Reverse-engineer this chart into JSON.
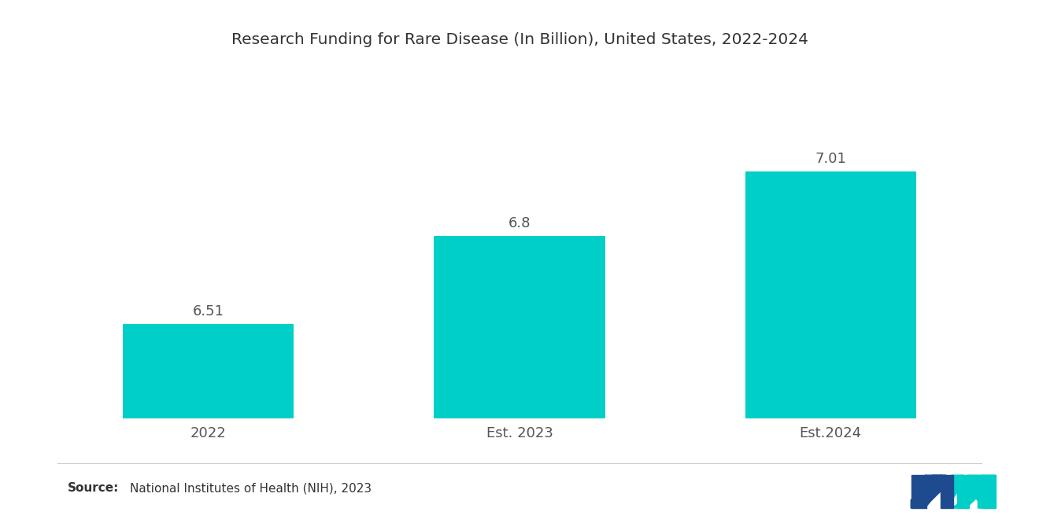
{
  "title": "Research Funding for Rare Disease (In Billion), United States, 2022-2024",
  "categories": [
    "2022",
    "Est. 2023",
    "Est.2024"
  ],
  "values": [
    6.51,
    6.8,
    7.01
  ],
  "bar_color": "#00CFC8",
  "background_color": "#ffffff",
  "title_fontsize": 14.5,
  "label_fontsize": 13,
  "tick_fontsize": 13,
  "source_text": "National Institutes of Health (NIH), 2023",
  "source_label": "Source:",
  "ylim_min": 6.2,
  "ylim_max": 7.35,
  "bar_width": 0.55
}
